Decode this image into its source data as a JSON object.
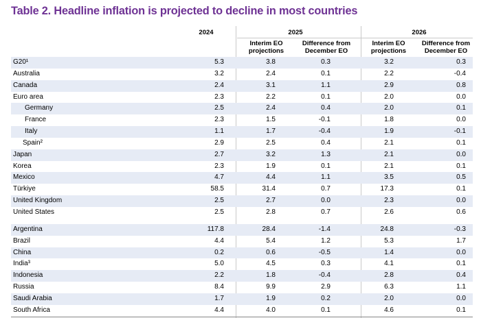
{
  "title": "Table 2. Headline inflation is projected to decline in most countries",
  "headers": {
    "y2024": "2024",
    "y2025": "2025",
    "y2026": "2026",
    "interim_line1": "Interim EO",
    "interim_line2": "projections",
    "diff_line1": "Difference from",
    "diff_line2": "December EO"
  },
  "rows": [
    {
      "name": "G20¹",
      "v2024": "5.3",
      "i2025": "3.8",
      "d2025": "0.3",
      "i2026": "3.2",
      "d2026": "0.3"
    },
    {
      "name": "Australia",
      "v2024": "3.2",
      "i2025": "2.4",
      "d2025": "0.1",
      "i2026": "2.2",
      "d2026": "-0.4"
    },
    {
      "name": "Canada",
      "v2024": "2.4",
      "i2025": "3.1",
      "d2025": "1.1",
      "i2026": "2.9",
      "d2026": "0.8"
    },
    {
      "name": "Euro area",
      "v2024": "2.3",
      "i2025": "2.2",
      "d2025": "0.1",
      "i2026": "2.0",
      "d2026": "0.0"
    },
    {
      "name": "Germany",
      "v2024": "2.5",
      "i2025": "2.4",
      "d2025": "0.4",
      "i2026": "2.0",
      "d2026": "0.1"
    },
    {
      "name": "France",
      "v2024": "2.3",
      "i2025": "1.5",
      "d2025": "-0.1",
      "i2026": "1.8",
      "d2026": "0.0"
    },
    {
      "name": "Italy",
      "v2024": "1.1",
      "i2025": "1.7",
      "d2025": "-0.4",
      "i2026": "1.9",
      "d2026": "-0.1"
    },
    {
      "name": "Spain²",
      "v2024": "2.9",
      "i2025": "2.5",
      "d2025": "0.4",
      "i2026": "2.1",
      "d2026": "0.1"
    },
    {
      "name": "Japan",
      "v2024": "2.7",
      "i2025": "3.2",
      "d2025": "1.3",
      "i2026": "2.1",
      "d2026": "0.0"
    },
    {
      "name": "Korea",
      "v2024": "2.3",
      "i2025": "1.9",
      "d2025": "0.1",
      "i2026": "2.1",
      "d2026": "0.1"
    },
    {
      "name": "Mexico",
      "v2024": "4.7",
      "i2025": "4.4",
      "d2025": "1.1",
      "i2026": "3.5",
      "d2026": "0.5"
    },
    {
      "name": "Türkiye",
      "v2024": "58.5",
      "i2025": "31.4",
      "d2025": "0.7",
      "i2026": "17.3",
      "d2026": "0.1"
    },
    {
      "name": "United Kingdom",
      "v2024": "2.5",
      "i2025": "2.7",
      "d2025": "0.0",
      "i2026": "2.3",
      "d2026": "0.0"
    },
    {
      "name": "United States",
      "v2024": "2.5",
      "i2025": "2.8",
      "d2025": "0.7",
      "i2026": "2.6",
      "d2026": "0.6"
    },
    {
      "name": "Argentina",
      "v2024": "117.8",
      "i2025": "28.4",
      "d2025": "-1.4",
      "i2026": "24.8",
      "d2026": "-0.3"
    },
    {
      "name": "Brazil",
      "v2024": "4.4",
      "i2025": "5.4",
      "d2025": "1.2",
      "i2026": "5.3",
      "d2026": "1.7"
    },
    {
      "name": "China",
      "v2024": "0.2",
      "i2025": "0.6",
      "d2025": "-0.5",
      "i2026": "1.4",
      "d2026": "0.0"
    },
    {
      "name": "India³",
      "v2024": "5.0",
      "i2025": "4.5",
      "d2025": "0.3",
      "i2026": "4.1",
      "d2026": "0.1"
    },
    {
      "name": "Indonesia",
      "v2024": "2.2",
      "i2025": "1.8",
      "d2025": "-0.4",
      "i2026": "2.8",
      "d2026": "0.4"
    },
    {
      "name": "Russia",
      "v2024": "8.4",
      "i2025": "9.9",
      "d2025": "2.9",
      "i2026": "6.3",
      "d2026": "1.1"
    },
    {
      "name": "Saudi Arabia",
      "v2024": "1.7",
      "i2025": "1.9",
      "d2025": "0.2",
      "i2026": "2.0",
      "d2026": "0.0"
    },
    {
      "name": "South Africa",
      "v2024": "4.4",
      "i2025": "4.0",
      "d2025": "0.1",
      "i2026": "4.6",
      "d2026": "0.1"
    }
  ]
}
